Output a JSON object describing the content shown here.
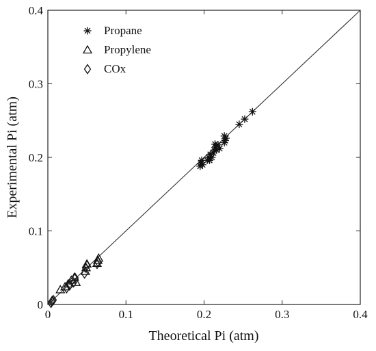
{
  "chart_data": {
    "type": "scatter",
    "title": "",
    "xlabel": "Theoretical Pi (atm)",
    "ylabel": "Experimental Pi (atm)",
    "xlim": [
      0,
      0.4
    ],
    "ylim": [
      0,
      0.4
    ],
    "xticks": [
      0,
      0.1,
      0.2,
      0.3,
      0.4
    ],
    "yticks": [
      0,
      0.1,
      0.2,
      0.3,
      0.4
    ],
    "xtick_labels": [
      "0",
      "0.1",
      "0.2",
      "0.3",
      "0.4"
    ],
    "ytick_labels": [
      "0",
      "0.1",
      "0.2",
      "0.3",
      "0.4"
    ],
    "grid": false,
    "legend_position": "top-left",
    "reference_line": {
      "x": [
        0,
        0.4
      ],
      "y": [
        0,
        0.4
      ]
    },
    "series": [
      {
        "name": "Propane",
        "marker": "asterisk",
        "points": [
          [
            0.195,
            0.188
          ],
          [
            0.196,
            0.192
          ],
          [
            0.197,
            0.196
          ],
          [
            0.198,
            0.19
          ],
          [
            0.204,
            0.196
          ],
          [
            0.206,
            0.2
          ],
          [
            0.208,
            0.204
          ],
          [
            0.207,
            0.196
          ],
          [
            0.21,
            0.2
          ],
          [
            0.212,
            0.206
          ],
          [
            0.213,
            0.21
          ],
          [
            0.215,
            0.214
          ],
          [
            0.216,
            0.21
          ],
          [
            0.218,
            0.217
          ],
          [
            0.22,
            0.212
          ],
          [
            0.214,
            0.218
          ],
          [
            0.226,
            0.22
          ],
          [
            0.227,
            0.223
          ],
          [
            0.228,
            0.226
          ],
          [
            0.226,
            0.229
          ],
          [
            0.245,
            0.245
          ],
          [
            0.252,
            0.252
          ],
          [
            0.262,
            0.262
          ]
        ]
      },
      {
        "name": "Propylene",
        "marker": "triangle",
        "points": [
          [
            0.016,
            0.02
          ],
          [
            0.022,
            0.024
          ],
          [
            0.026,
            0.028
          ],
          [
            0.03,
            0.033
          ],
          [
            0.034,
            0.037
          ],
          [
            0.036,
            0.03
          ],
          [
            0.048,
            0.045
          ],
          [
            0.049,
            0.05
          ],
          [
            0.05,
            0.055
          ],
          [
            0.063,
            0.056
          ],
          [
            0.064,
            0.06
          ],
          [
            0.065,
            0.063
          ]
        ]
      },
      {
        "name": "COx",
        "marker": "diamond",
        "points": [
          [
            0.004,
            0.002
          ],
          [
            0.005,
            0.004
          ],
          [
            0.006,
            0.005
          ],
          [
            0.007,
            0.006
          ],
          [
            0.024,
            0.022
          ],
          [
            0.028,
            0.026
          ],
          [
            0.033,
            0.03
          ],
          [
            0.035,
            0.036
          ],
          [
            0.047,
            0.042
          ],
          [
            0.048,
            0.05
          ],
          [
            0.05,
            0.053
          ],
          [
            0.063,
            0.055
          ],
          [
            0.064,
            0.058
          ]
        ]
      }
    ]
  }
}
